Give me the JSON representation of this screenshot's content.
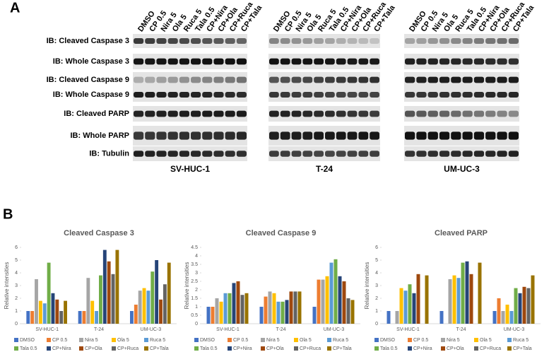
{
  "panel_a": {
    "label": "A",
    "lanes": [
      "DMSO",
      "CP 0.5",
      "Nira 5",
      "Ola 5",
      "Ruca 5",
      "Tala 0.5",
      "CP+Nira",
      "CP+Ola",
      "CP+Ruca",
      "CP+Tala"
    ],
    "rows": [
      "IB: Cleaved Caspase 3",
      "IB: Whole Caspase 3",
      "IB: Cleaved Caspase 9",
      "IB: Whole Caspase 9",
      "IB: Cleaved PARP",
      "IB: Whole PARP",
      "IB: Tubulin"
    ],
    "cell_lines": [
      "SV-HUC-1",
      "T-24",
      "UM-UC-3"
    ]
  },
  "panel_b": {
    "label": "B"
  },
  "chart_data": [
    {
      "type": "bar",
      "title": "Cleaved Caspase 3",
      "y_label": "Relative intensities",
      "categories": [
        "SV-HUC-1",
        "T-24",
        "UM-UC-3"
      ],
      "ylim": [
        0,
        6
      ],
      "yticks": [
        0,
        1,
        2,
        3,
        4,
        5,
        6
      ],
      "series": [
        {
          "name": "DMSO",
          "color": "#4472c4",
          "values": [
            1,
            1,
            1
          ]
        },
        {
          "name": "CP 0.5",
          "color": "#ed7d31",
          "values": [
            1,
            1,
            1.5
          ]
        },
        {
          "name": "Nira 5",
          "color": "#a5a5a5",
          "values": [
            3.5,
            3.6,
            2.6
          ]
        },
        {
          "name": "Ola 5",
          "color": "#ffc000",
          "values": [
            1.8,
            1.8,
            2.8
          ]
        },
        {
          "name": "Ruca 5",
          "color": "#5b9bd5",
          "values": [
            1.6,
            1,
            2.6
          ]
        },
        {
          "name": "Tala 0.5",
          "color": "#70ad47",
          "values": [
            4.8,
            3.8,
            4.1
          ]
        },
        {
          "name": "CP+Nira",
          "color": "#264478",
          "values": [
            2.4,
            5.8,
            5
          ]
        },
        {
          "name": "CP+Ola",
          "color": "#9e480e",
          "values": [
            1.9,
            4.9,
            1.9
          ]
        },
        {
          "name": "CP+Ruca",
          "color": "#636363",
          "values": [
            1,
            3.9,
            3.1
          ]
        },
        {
          "name": "CP+Tala",
          "color": "#997300",
          "values": [
            1.8,
            5.8,
            4.8
          ]
        }
      ]
    },
    {
      "type": "bar",
      "title": "Cleaved Caspase 9",
      "y_label": "Relative intensities",
      "categories": [
        "SV-HUC-1",
        "T-24",
        "UM-UC-3"
      ],
      "ylim": [
        0,
        4.5
      ],
      "yticks": [
        0,
        0.5,
        1,
        1.5,
        2,
        2.5,
        3,
        3.5,
        4,
        4.5
      ],
      "series": [
        {
          "name": "DMSO",
          "color": "#4472c4",
          "values": [
            1,
            1,
            1
          ]
        },
        {
          "name": "CP 0.5",
          "color": "#ed7d31",
          "values": [
            1,
            1.6,
            2.6
          ]
        },
        {
          "name": "Nira 5",
          "color": "#a5a5a5",
          "values": [
            1.5,
            1.9,
            2.6
          ]
        },
        {
          "name": "Ola 5",
          "color": "#ffc000",
          "values": [
            1.3,
            1.8,
            2.8
          ]
        },
        {
          "name": "Ruca 5",
          "color": "#5b9bd5",
          "values": [
            1.8,
            1.3,
            3.6
          ]
        },
        {
          "name": "Tala 0.5",
          "color": "#70ad47",
          "values": [
            1.8,
            1.3,
            3.8
          ]
        },
        {
          "name": "CP+Nira",
          "color": "#264478",
          "values": [
            2.4,
            1.4,
            2.8
          ]
        },
        {
          "name": "CP+Ola",
          "color": "#9e480e",
          "values": [
            2.5,
            1.9,
            2.5
          ]
        },
        {
          "name": "CP+Ruca",
          "color": "#636363",
          "values": [
            1.7,
            1.9,
            1.5
          ]
        },
        {
          "name": "CP+Tala",
          "color": "#997300",
          "values": [
            1.8,
            1.9,
            1.4
          ]
        }
      ]
    },
    {
      "type": "bar",
      "title": "Cleaved PARP",
      "y_label": "Relative intensities",
      "categories": [
        "SV-HUC-1",
        "T-24",
        "UM-UC-3"
      ],
      "ylim": [
        0,
        6
      ],
      "yticks": [
        0,
        1,
        2,
        3,
        4,
        5,
        6
      ],
      "series": [
        {
          "name": "DMSO",
          "color": "#4472c4",
          "values": [
            1,
            1,
            1
          ]
        },
        {
          "name": "CP 0.5",
          "color": "#ed7d31",
          "values": [
            0,
            0,
            2
          ]
        },
        {
          "name": "Nira 5",
          "color": "#a5a5a5",
          "values": [
            1,
            3.5,
            1
          ]
        },
        {
          "name": "Ola 5",
          "color": "#ffc000",
          "values": [
            2.8,
            3.8,
            1.5
          ]
        },
        {
          "name": "Ruca 5",
          "color": "#5b9bd5",
          "values": [
            2.6,
            3.6,
            1
          ]
        },
        {
          "name": "Tala 0.5",
          "color": "#70ad47",
          "values": [
            3.1,
            4.8,
            2.8
          ]
        },
        {
          "name": "CP+Nira",
          "color": "#264478",
          "values": [
            2.4,
            4.9,
            2.4
          ]
        },
        {
          "name": "CP+Ola",
          "color": "#9e480e",
          "values": [
            3.9,
            3.9,
            2.9
          ]
        },
        {
          "name": "CP+Ruca",
          "color": "#636363",
          "values": [
            0,
            0,
            2.8
          ]
        },
        {
          "name": "CP+Tala",
          "color": "#997300",
          "values": [
            3.8,
            4.8,
            3.8
          ]
        }
      ]
    }
  ]
}
